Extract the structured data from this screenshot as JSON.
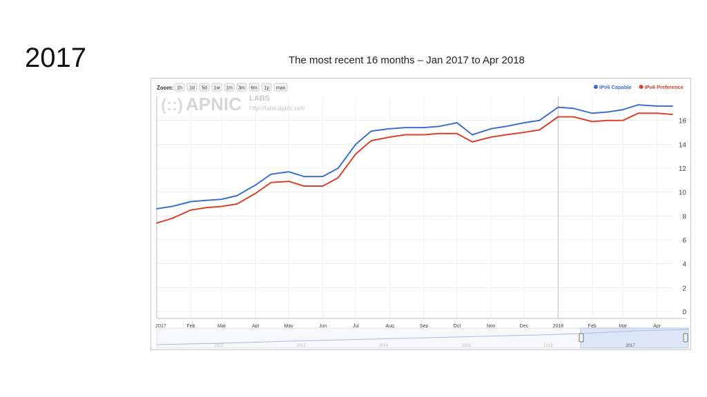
{
  "slide": {
    "title": "2017",
    "subtitle": "The most recent 16 months – Jan 2017 to Apr 2018"
  },
  "toolbar": {
    "zoom_label": "Zoom:",
    "zoom_options": [
      "1h",
      "1d",
      "5d",
      "1w",
      "1m",
      "3m",
      "6m",
      "1y",
      "max"
    ]
  },
  "watermark": {
    "brand": "APNIC",
    "labs": "LABS",
    "url": "http://labs.apnic.net/"
  },
  "chart_data": {
    "type": "line",
    "title": "",
    "xlabel": "",
    "ylabel": "",
    "ylim": [
      0,
      18
    ],
    "yticks": [
      0,
      2,
      4,
      6,
      8,
      10,
      12,
      14,
      16
    ],
    "grid": true,
    "legend_position": "top-right",
    "x": [
      "2017-01-01",
      "2017-01-15",
      "2017-02-01",
      "2017-02-15",
      "2017-03-01",
      "2017-03-15",
      "2017-04-01",
      "2017-04-15",
      "2017-05-01",
      "2017-05-15",
      "2017-06-01",
      "2017-06-15",
      "2017-07-01",
      "2017-07-15",
      "2017-08-01",
      "2017-08-15",
      "2017-09-01",
      "2017-09-15",
      "2017-10-01",
      "2017-10-15",
      "2017-11-01",
      "2017-11-15",
      "2017-12-01",
      "2017-12-15",
      "2018-01-01",
      "2018-01-15",
      "2018-02-01",
      "2018-02-15",
      "2018-03-01",
      "2018-03-15",
      "2018-04-01",
      "2018-04-15"
    ],
    "xtick_labels": [
      "2017",
      "Feb",
      "Mar",
      "Apr",
      "May",
      "Jun",
      "Jul",
      "Aug",
      "Sep",
      "Oct",
      "Nov",
      "Dec",
      "2018",
      "Feb",
      "Mar",
      "Apr"
    ],
    "series": [
      {
        "name": "IPv6 Capable",
        "color": "#3b6fcf",
        "values": [
          8.6,
          8.8,
          9.2,
          9.3,
          9.4,
          9.7,
          10.6,
          11.5,
          11.7,
          11.3,
          11.3,
          12.0,
          14.0,
          15.1,
          15.3,
          15.4,
          15.4,
          15.5,
          15.8,
          14.8,
          15.3,
          15.5,
          15.8,
          16.0,
          17.1,
          17.0,
          16.6,
          16.7,
          16.9,
          17.3,
          17.2,
          17.2
        ]
      },
      {
        "name": "IPv6 Preference",
        "color": "#d9412b",
        "values": [
          7.4,
          7.8,
          8.5,
          8.7,
          8.8,
          9.0,
          9.9,
          10.8,
          10.9,
          10.5,
          10.5,
          11.2,
          13.2,
          14.3,
          14.6,
          14.8,
          14.8,
          14.9,
          14.9,
          14.2,
          14.6,
          14.8,
          15.0,
          15.2,
          16.3,
          16.3,
          15.9,
          16.0,
          16.0,
          16.6,
          16.6,
          16.5
        ]
      }
    ],
    "navigator": {
      "labels": [
        "2012",
        "2013",
        "2014",
        "2015",
        "2016",
        "2017"
      ],
      "selected_label": "2017"
    }
  }
}
